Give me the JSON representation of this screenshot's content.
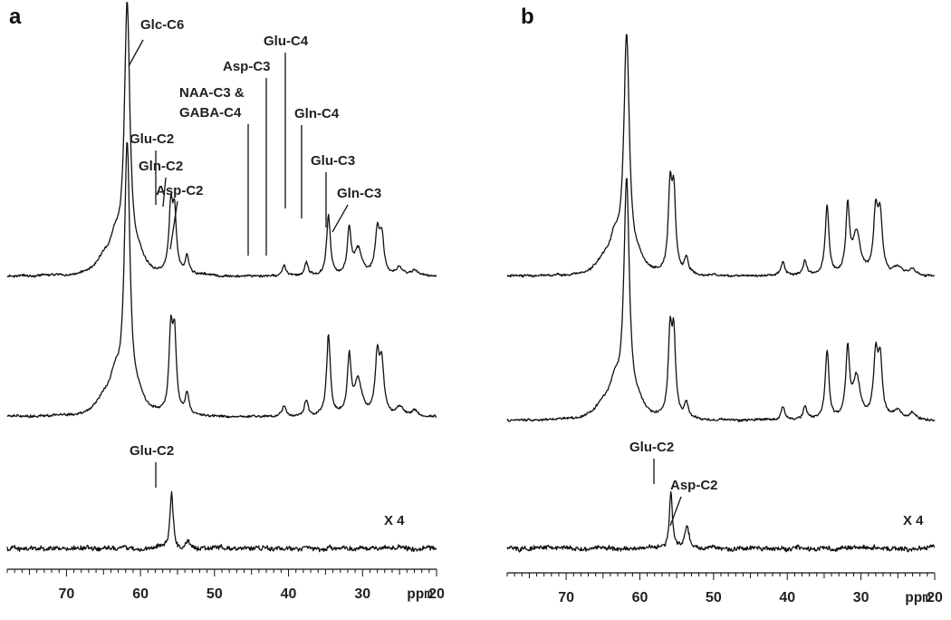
{
  "colors": {
    "line": "#111111",
    "text": "#222222",
    "background": "#ffffff"
  },
  "chart_data": [
    {
      "panel": "a",
      "type": "line",
      "xlabel": "ppm",
      "xlim": [
        78,
        20
      ],
      "reversed_x": true,
      "xticks": [
        70,
        60,
        50,
        40,
        30,
        20
      ],
      "traces": [
        {
          "baseline": 0.04,
          "peaks": [
            {
              "ppm": 61.8,
              "height": 1.0,
              "width": 0.45
            },
            {
              "ppm": 63.4,
              "height": 0.11,
              "width": 0.9
            },
            {
              "ppm": 65.0,
              "height": 0.05,
              "width": 1.2
            },
            {
              "ppm": 60.2,
              "height": 0.05,
              "width": 1.0
            },
            {
              "ppm": 55.9,
              "height": 0.24,
              "width": 0.3
            },
            {
              "ppm": 55.4,
              "height": 0.22,
              "width": 0.3
            },
            {
              "ppm": 53.7,
              "height": 0.07,
              "width": 0.3
            },
            {
              "ppm": 40.6,
              "height": 0.04,
              "width": 0.3
            },
            {
              "ppm": 37.6,
              "height": 0.05,
              "width": 0.3
            },
            {
              "ppm": 34.6,
              "height": 0.23,
              "width": 0.3
            },
            {
              "ppm": 31.8,
              "height": 0.17,
              "width": 0.3
            },
            {
              "ppm": 30.6,
              "height": 0.1,
              "width": 0.6
            },
            {
              "ppm": 28.0,
              "height": 0.16,
              "width": 0.35
            },
            {
              "ppm": 27.4,
              "height": 0.14,
              "width": 0.35
            },
            {
              "ppm": 25.0,
              "height": 0.03,
              "width": 0.6
            },
            {
              "ppm": 23.0,
              "height": 0.02,
              "width": 0.5
            }
          ]
        },
        {
          "baseline": 0.04,
          "peaks": [
            {
              "ppm": 61.8,
              "height": 1.0,
              "width": 0.45
            },
            {
              "ppm": 63.4,
              "height": 0.12,
              "width": 0.9
            },
            {
              "ppm": 65.0,
              "height": 0.05,
              "width": 1.2
            },
            {
              "ppm": 60.2,
              "height": 0.05,
              "width": 1.0
            },
            {
              "ppm": 55.9,
              "height": 0.3,
              "width": 0.3
            },
            {
              "ppm": 55.4,
              "height": 0.28,
              "width": 0.3
            },
            {
              "ppm": 53.7,
              "height": 0.08,
              "width": 0.3
            },
            {
              "ppm": 40.6,
              "height": 0.04,
              "width": 0.3
            },
            {
              "ppm": 37.6,
              "height": 0.06,
              "width": 0.3
            },
            {
              "ppm": 34.6,
              "height": 0.31,
              "width": 0.3
            },
            {
              "ppm": 31.8,
              "height": 0.22,
              "width": 0.3
            },
            {
              "ppm": 30.6,
              "height": 0.13,
              "width": 0.6
            },
            {
              "ppm": 28.0,
              "height": 0.22,
              "width": 0.35
            },
            {
              "ppm": 27.4,
              "height": 0.18,
              "width": 0.35
            },
            {
              "ppm": 25.0,
              "height": 0.03,
              "width": 0.6
            },
            {
              "ppm": 23.0,
              "height": 0.02,
              "width": 0.5
            }
          ]
        },
        {
          "baseline": 0.0,
          "peaks": [
            {
              "ppm": 55.8,
              "height": 1.0,
              "width": 0.25
            },
            {
              "ppm": 53.6,
              "height": 0.12,
              "width": 0.3
            }
          ]
        }
      ],
      "annotations": [
        {
          "text": "Glc-C6",
          "trace": 0
        },
        {
          "text": "Glu-C2",
          "trace": 0
        },
        {
          "text": "Gln-C2",
          "trace": 0
        },
        {
          "text": "Asp-C2",
          "trace": 0
        },
        {
          "text": "NAA-C3 &",
          "trace": 0
        },
        {
          "text": "GABA-C4",
          "trace": 0
        },
        {
          "text": "Asp-C3",
          "trace": 0
        },
        {
          "text": "Glu-C4",
          "trace": 0
        },
        {
          "text": "Gln-C4",
          "trace": 0
        },
        {
          "text": "Glu-C3",
          "trace": 0
        },
        {
          "text": "Gln-C3",
          "trace": 0
        },
        {
          "text": "Glu-C2",
          "trace": 2
        }
      ],
      "scale_label": "X 4"
    },
    {
      "panel": "b",
      "type": "line",
      "xlabel": "ppm",
      "xlim": [
        78,
        20
      ],
      "reversed_x": true,
      "xticks": [
        70,
        60,
        50,
        40,
        30,
        20
      ],
      "traces": [
        {
          "baseline": 0.04,
          "peaks": [
            {
              "ppm": 61.8,
              "height": 1.0,
              "width": 0.45
            },
            {
              "ppm": 63.4,
              "height": 0.13,
              "width": 0.9
            },
            {
              "ppm": 65.0,
              "height": 0.05,
              "width": 1.2
            },
            {
              "ppm": 60.2,
              "height": 0.05,
              "width": 1.0
            },
            {
              "ppm": 55.9,
              "height": 0.35,
              "width": 0.3
            },
            {
              "ppm": 55.4,
              "height": 0.33,
              "width": 0.3
            },
            {
              "ppm": 53.7,
              "height": 0.07,
              "width": 0.3
            },
            {
              "ppm": 40.6,
              "height": 0.06,
              "width": 0.3
            },
            {
              "ppm": 37.6,
              "height": 0.06,
              "width": 0.3
            },
            {
              "ppm": 34.6,
              "height": 0.3,
              "width": 0.3
            },
            {
              "ppm": 31.8,
              "height": 0.29,
              "width": 0.3
            },
            {
              "ppm": 30.6,
              "height": 0.18,
              "width": 0.6
            },
            {
              "ppm": 28.0,
              "height": 0.26,
              "width": 0.35
            },
            {
              "ppm": 27.4,
              "height": 0.24,
              "width": 0.35
            },
            {
              "ppm": 25.0,
              "height": 0.04,
              "width": 0.6
            },
            {
              "ppm": 23.0,
              "height": 0.03,
              "width": 0.5
            }
          ]
        },
        {
          "baseline": 0.04,
          "peaks": [
            {
              "ppm": 61.8,
              "height": 1.0,
              "width": 0.45
            },
            {
              "ppm": 63.4,
              "height": 0.13,
              "width": 0.9
            },
            {
              "ppm": 65.0,
              "height": 0.05,
              "width": 1.2
            },
            {
              "ppm": 60.2,
              "height": 0.05,
              "width": 1.0
            },
            {
              "ppm": 55.9,
              "height": 0.35,
              "width": 0.3
            },
            {
              "ppm": 55.4,
              "height": 0.33,
              "width": 0.3
            },
            {
              "ppm": 53.7,
              "height": 0.07,
              "width": 0.3
            },
            {
              "ppm": 40.6,
              "height": 0.06,
              "width": 0.3
            },
            {
              "ppm": 37.6,
              "height": 0.06,
              "width": 0.3
            },
            {
              "ppm": 34.6,
              "height": 0.3,
              "width": 0.3
            },
            {
              "ppm": 31.8,
              "height": 0.29,
              "width": 0.3
            },
            {
              "ppm": 30.6,
              "height": 0.18,
              "width": 0.6
            },
            {
              "ppm": 28.0,
              "height": 0.26,
              "width": 0.35
            },
            {
              "ppm": 27.4,
              "height": 0.24,
              "width": 0.35
            },
            {
              "ppm": 25.0,
              "height": 0.04,
              "width": 0.6
            },
            {
              "ppm": 23.0,
              "height": 0.03,
              "width": 0.5
            }
          ]
        },
        {
          "baseline": 0.0,
          "peaks": [
            {
              "ppm": 55.8,
              "height": 1.0,
              "width": 0.25
            },
            {
              "ppm": 53.6,
              "height": 0.38,
              "width": 0.35
            }
          ]
        }
      ],
      "annotations": [
        {
          "text": "Glu-C2",
          "trace": 2
        },
        {
          "text": "Asp-C2",
          "trace": 2
        }
      ],
      "scale_label": "X 4"
    }
  ]
}
